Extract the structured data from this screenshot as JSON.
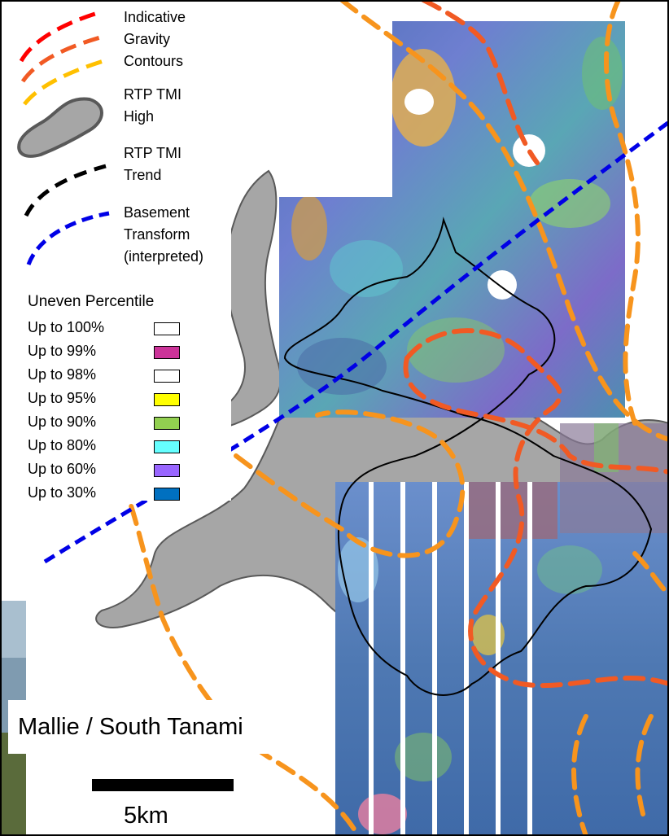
{
  "legend": {
    "gravity_label": [
      "Indicative",
      "Gravity",
      "Contours"
    ],
    "high_label": [
      "RTP TMI",
      "High"
    ],
    "trend_label": [
      "RTP TMI",
      "Trend"
    ],
    "transform_label": [
      "Basement",
      "Transform",
      "(interpreted)"
    ],
    "percentile_title": "Uneven Percentile",
    "percentiles": [
      {
        "label": "Up to 100%",
        "color": "#ffffff"
      },
      {
        "label": "Up to 99%",
        "color": "#cc3399"
      },
      {
        "label": "Up to 98%",
        "color": "#ffffff"
      },
      {
        "label": "Up to 95%",
        "color": "#ffff00"
      },
      {
        "label": "Up to 90%",
        "color": "#92d050"
      },
      {
        "label": "Up to 80%",
        "color": "#66ffff"
      },
      {
        "label": "Up to 60%",
        "color": "#9966ff"
      },
      {
        "label": "Up to 30%",
        "color": "#0070c0"
      }
    ]
  },
  "colors": {
    "gravity_red": "#ff0000",
    "gravity_orange": "#f15a24",
    "gravity_light": "#f7941d",
    "gravity_yellow": "#ffc000",
    "rtp_high_fill": "#a6a6a6",
    "rtp_high_stroke": "#595959",
    "trend": "#000000",
    "transform": "#0000e6"
  },
  "map": {
    "title": "Mallie / South Tanami",
    "scale_label": "5km"
  }
}
